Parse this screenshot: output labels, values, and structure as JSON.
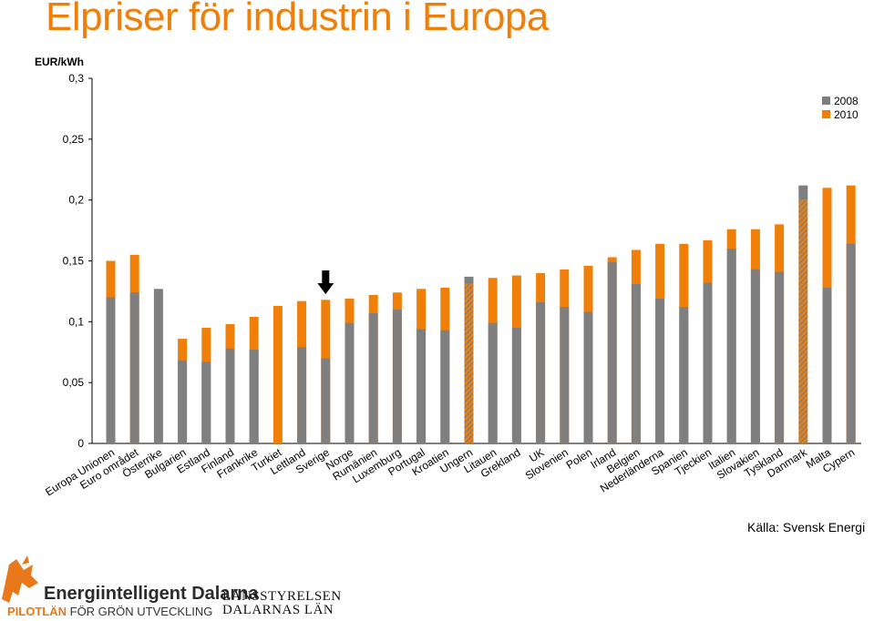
{
  "header": {
    "title": "Elpriser för industrin i Europa",
    "unit": "EUR/kWh"
  },
  "source": "Källa: Svensk Energi",
  "footer": {
    "brand1_name": "Energiintelligent Dalarna",
    "brand1_tag_a": "PILOTLÄN",
    "brand1_tag_b": "FÖR GRÖN UTVECKLING",
    "brand2_line1": "LÄNSSTYRELSEN",
    "brand2_line2": "DALARNAS LÄN",
    "icon": "mountain-figure-icon"
  },
  "colors": {
    "series_2008": "#7f7f7f",
    "series_2010": "#f07f09",
    "title": "#f07f09",
    "axis": "#000000"
  },
  "chart_data": {
    "type": "bar",
    "title": "Elpriser för industrin i Europa",
    "ylabel": "EUR/kWh",
    "xlabel": "",
    "ylim": [
      0,
      0.3
    ],
    "yticks": [
      0,
      0.05,
      0.1,
      0.15,
      0.2,
      0.25,
      0.3
    ],
    "ytick_labels": [
      "0",
      "0,05",
      "0,1",
      "0,15",
      "0,2",
      "0,25",
      "0,3"
    ],
    "legend_position": "top-right",
    "grid": false,
    "highlight": {
      "category": "Sverige",
      "marker": "down-arrow"
    },
    "categories": [
      "Europa Unionen",
      "Euro området",
      "Österrike",
      "Bulgarien",
      "Estland",
      "Finland",
      "Frankrike",
      "Turkiet",
      "Lettland",
      "Sverige",
      "Norge",
      "Rumänien",
      "Luxemburg",
      "Portugal",
      "Kroatien",
      "Ungern",
      "Litauen",
      "Grekland",
      "UK",
      "Slovenien",
      "Polen",
      "Irland",
      "Belgien",
      "Nederländerna",
      "Spanien",
      "Tjeckien",
      "Italien",
      "Slovakien",
      "Tyskland",
      "Danmark",
      "Malta",
      "Cypern"
    ],
    "series": [
      {
        "name": "2008",
        "values": [
          0.12,
          0.124,
          0.127,
          0.068,
          0.067,
          0.078,
          0.077,
          null,
          0.079,
          0.07,
          0.099,
          0.107,
          0.11,
          0.094,
          0.093,
          0.137,
          0.099,
          0.095,
          0.116,
          0.112,
          0.108,
          0.149,
          0.131,
          0.119,
          0.112,
          0.132,
          0.16,
          0.143,
          0.141,
          0.212,
          0.128,
          0.164
        ]
      },
      {
        "name": "2010",
        "values": [
          0.15,
          0.155,
          null,
          0.086,
          0.095,
          0.098,
          0.104,
          0.113,
          0.117,
          0.118,
          0.119,
          0.122,
          0.124,
          0.127,
          0.128,
          0.131,
          0.136,
          0.138,
          0.14,
          0.143,
          0.146,
          0.153,
          0.159,
          0.164,
          0.164,
          0.167,
          0.176,
          0.176,
          0.18,
          0.2,
          0.21,
          0.212
        ]
      }
    ]
  }
}
